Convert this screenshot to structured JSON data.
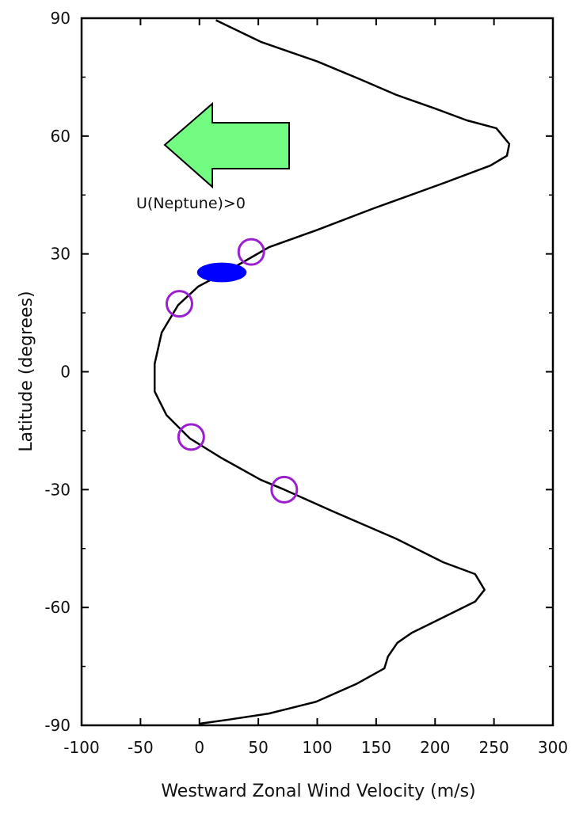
{
  "chart_data": {
    "type": "line",
    "title": "",
    "xlabel": "Westward Zonal Wind Velocity (m/s)",
    "ylabel": "Latitude (degrees)",
    "xlim": [
      -100,
      300
    ],
    "ylim": [
      -90,
      90
    ],
    "xticks": [
      -100,
      -50,
      0,
      50,
      100,
      150,
      200,
      250,
      300
    ],
    "yticks": [
      90,
      60,
      30,
      0,
      -30,
      -60,
      -90
    ],
    "grid": false,
    "series": [
      {
        "name": "zonal wind profile",
        "color": "#000000",
        "points": [
          [
            14,
            89.5
          ],
          [
            52,
            84
          ],
          [
            100,
            79
          ],
          [
            136,
            74.5
          ],
          [
            167,
            70.5
          ],
          [
            200,
            67
          ],
          [
            227,
            64
          ],
          [
            252,
            62
          ],
          [
            263,
            58
          ],
          [
            261,
            55
          ],
          [
            247,
            52.5
          ],
          [
            207,
            48
          ],
          [
            147,
            41.5
          ],
          [
            99,
            36
          ],
          [
            59,
            31.7
          ],
          [
            26,
            26
          ],
          [
            -1,
            21.7
          ],
          [
            -18,
            17
          ],
          [
            -32,
            10
          ],
          [
            -38,
            2
          ],
          [
            -38,
            -5
          ],
          [
            -28,
            -11
          ],
          [
            -8,
            -17
          ],
          [
            19,
            -22
          ],
          [
            52,
            -27.5
          ],
          [
            72,
            -30
          ],
          [
            113,
            -35.5
          ],
          [
            167,
            -42.5
          ],
          [
            207,
            -48.5
          ],
          [
            234,
            -51.5
          ],
          [
            242,
            -55.5
          ],
          [
            234,
            -58.5
          ],
          [
            207,
            -62.5
          ],
          [
            180,
            -66.5
          ],
          [
            168,
            -69
          ],
          [
            160,
            -72.5
          ],
          [
            157,
            -75.5
          ],
          [
            133,
            -79.5
          ],
          [
            99,
            -84
          ],
          [
            59,
            -87
          ],
          [
            26,
            -88.5
          ],
          [
            0,
            -89.6
          ]
        ]
      }
    ],
    "markers": {
      "circles": {
        "color": "#9a1fd0",
        "points": [
          [
            44,
            30.5
          ],
          [
            -17,
            17.3
          ],
          [
            -7,
            -16.6
          ],
          [
            72,
            -30
          ]
        ]
      },
      "ellipse": {
        "color": "#0000ff",
        "center": [
          19,
          25.3
        ],
        "width_ms": 42,
        "height_deg": 5
      }
    },
    "annotation": {
      "text": "U(Neptune)>0",
      "arrow_direction": "left",
      "arrow_color": "#72fc82"
    }
  }
}
